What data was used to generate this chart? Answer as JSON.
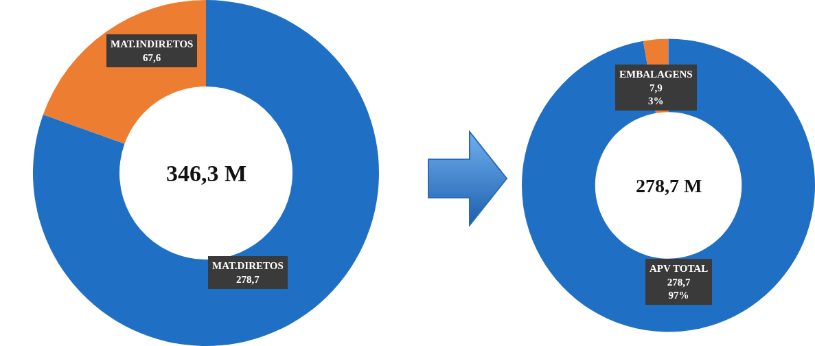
{
  "chart_data": [
    {
      "type": "donut",
      "categories": [
        "MAT.INDIRETOS",
        "MAT.DIRETOS"
      ],
      "values": [
        67.6,
        278.7
      ],
      "colors": [
        "#ed7d31",
        "#1f6fc4"
      ],
      "value_labels": [
        "67,6",
        "278,7"
      ],
      "annotations": [
        "346,3 M"
      ]
    },
    {
      "type": "donut",
      "categories": [
        "EMBALAGENS",
        "APV TOTAL"
      ],
      "values": [
        7.9,
        278.7
      ],
      "colors": [
        "#ed7d31",
        "#1f6fc4"
      ],
      "value_labels": [
        "7,9\n3%",
        "278,7\n97%"
      ],
      "annotations": [
        "278,7 M"
      ]
    }
  ]
}
